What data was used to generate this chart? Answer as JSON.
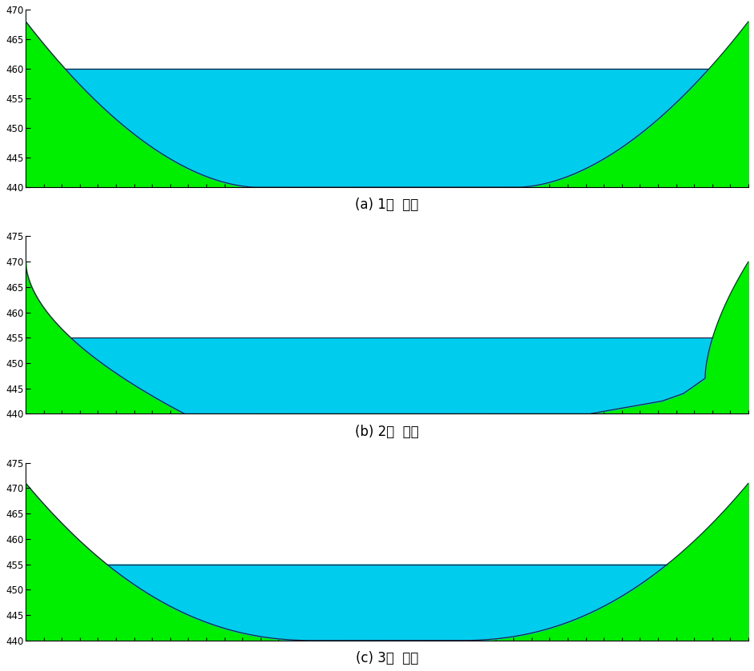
{
  "panels": [
    {
      "label": "(a) 1번  지점",
      "ylim": [
        440,
        470
      ],
      "yticks": [
        440,
        445,
        450,
        455,
        460,
        465,
        470
      ],
      "water_level": 460,
      "valley_type": "a"
    },
    {
      "label": "(b) 2번  지점",
      "ylim": [
        440,
        475
      ],
      "yticks": [
        440,
        445,
        450,
        455,
        460,
        465,
        470,
        475
      ],
      "water_level": 455,
      "valley_type": "b"
    },
    {
      "label": "(c) 3번  지점",
      "ylim": [
        440,
        475
      ],
      "yticks": [
        440,
        445,
        450,
        455,
        460,
        465,
        470,
        475
      ],
      "water_level": 455,
      "valley_type": "c"
    }
  ],
  "green_color": "#00EE00",
  "cyan_color": "#00CCEE",
  "line_color": "#222244",
  "background_color": "#ffffff",
  "label_fontsize": 12,
  "num_xticks": 41
}
